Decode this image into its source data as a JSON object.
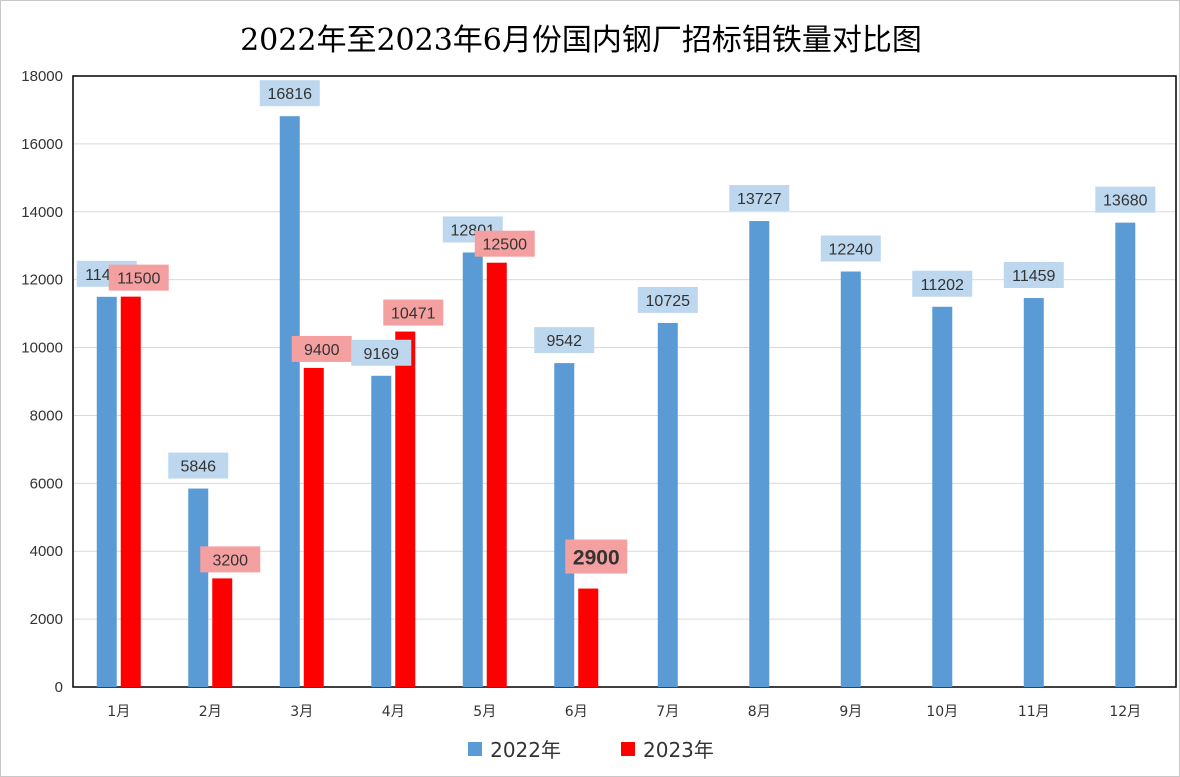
{
  "chart_data": {
    "type": "bar",
    "title": "2022年至2023年6月份国内钢厂招标钼铁量对比图",
    "categories": [
      "1月",
      "2月",
      "3月",
      "4月",
      "5月",
      "6月",
      "7月",
      "8月",
      "9月",
      "10月",
      "11月",
      "12月"
    ],
    "series": [
      {
        "name": "2022年",
        "color": "#5b9bd5",
        "label_bg": "#bdd7ee",
        "values": [
          11495,
          5846,
          16816,
          9169,
          12801,
          9542,
          10725,
          13727,
          12240,
          11202,
          11459,
          13680
        ]
      },
      {
        "name": "2023年",
        "color": "#ff0000",
        "label_bg": "#f4a0a0",
        "values": [
          11500,
          3200,
          9400,
          10471,
          12500,
          2900,
          null,
          null,
          null,
          null,
          null,
          null
        ]
      }
    ],
    "ylim": [
      0,
      18000
    ],
    "yticks": [
      0,
      2000,
      4000,
      6000,
      8000,
      10000,
      12000,
      14000,
      16000,
      18000
    ],
    "grid": true,
    "legend_position": "bottom",
    "emphasized_label": "2900"
  }
}
